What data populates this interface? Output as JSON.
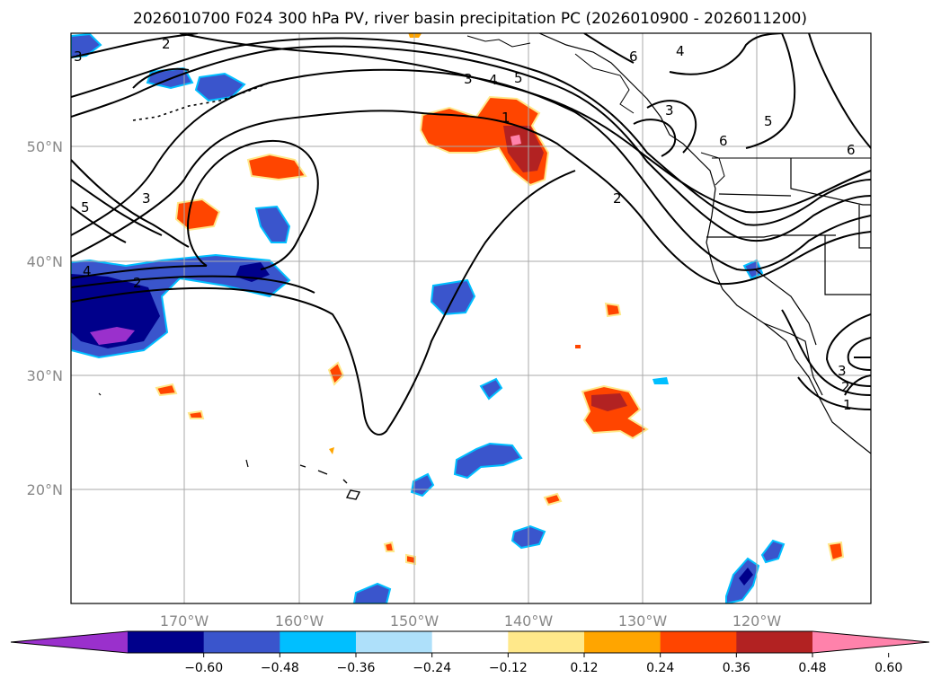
{
  "title": "2026010700 F024 300 hPa PV, river basin precipitation PC (2026010900 - 2026011200)",
  "map": {
    "lon_labels": [
      "170°W",
      "160°W",
      "150°W",
      "140°W",
      "130°W",
      "120°W"
    ],
    "lat_labels": [
      "50°N",
      "40°N",
      "30°N",
      "20°N"
    ]
  },
  "colorbar": {
    "ticks": [
      "−0.60",
      "−0.48",
      "−0.36",
      "−0.24",
      "−0.12",
      "0.12",
      "0.24",
      "0.36",
      "0.48",
      "0.60"
    ],
    "colors": [
      "#9a30cc",
      "#00008b",
      "#3a55cc",
      "#00bfff",
      "#aee0fa",
      "#ffffff",
      "#ffe88a",
      "#ffa500",
      "#ff4500",
      "#b22222",
      "#ff82ab"
    ]
  },
  "contour_labels": [
    "1",
    "2",
    "3",
    "4",
    "5",
    "6"
  ]
}
